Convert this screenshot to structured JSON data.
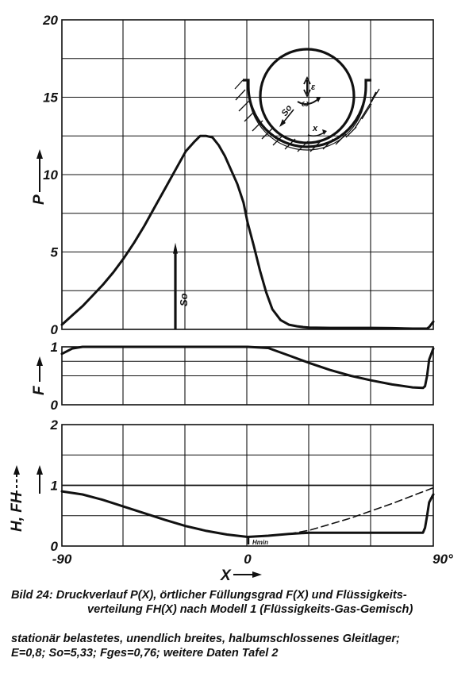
{
  "chart_data": [
    {
      "type": "line",
      "panel": "pressure",
      "ylabel": "P",
      "xlim": [
        -90,
        90
      ],
      "ylim": [
        0,
        20
      ],
      "yticks": [
        0,
        5,
        10,
        15,
        20
      ],
      "ytick_labels": [
        "0",
        "5",
        "10",
        "15",
        "20"
      ],
      "grid": true,
      "series": [
        {
          "x": [
            -90,
            -85,
            -80,
            -75,
            -70,
            -65,
            -60,
            -55,
            -50,
            -45,
            -40,
            -35,
            -30,
            -26,
            -23,
            -20,
            -17,
            -14,
            -11,
            -8,
            -5,
            -2,
            0,
            3,
            6,
            9,
            12,
            16,
            20,
            24,
            27,
            30,
            40,
            50,
            60,
            70,
            80,
            87,
            88,
            90
          ],
          "y": [
            0.3,
            0.9,
            1.5,
            2.2,
            2.9,
            3.7,
            4.6,
            5.6,
            6.7,
            7.9,
            9.1,
            10.3,
            11.5,
            12.1,
            12.5,
            12.5,
            12.4,
            11.9,
            11.2,
            10.3,
            9.4,
            8.2,
            6.9,
            5.4,
            3.8,
            2.4,
            1.3,
            0.6,
            0.3,
            0.2,
            0.15,
            0.12,
            0.1,
            0.1,
            0.1,
            0.08,
            0.05,
            0.05,
            0.15,
            0.5
          ]
        }
      ],
      "annotations": [
        {
          "text": "So",
          "x": -35
        },
        {
          "text": "ε"
        },
        {
          "text": "ω"
        },
        {
          "text": "So"
        },
        {
          "text": "x"
        }
      ]
    },
    {
      "type": "line",
      "panel": "filling",
      "ylabel": "F",
      "xlim": [
        -90,
        90
      ],
      "ylim": [
        0,
        1
      ],
      "yticks": [
        0,
        0.5,
        1
      ],
      "ytick_labels": [
        "0",
        "",
        "1"
      ],
      "grid": true,
      "series": [
        {
          "x": [
            -90,
            -85,
            -80,
            -30,
            0,
            10,
            20,
            30,
            40,
            50,
            60,
            70,
            80,
            85,
            86,
            87,
            88,
            90
          ],
          "y": [
            0.88,
            0.97,
            1.0,
            1.0,
            1.0,
            0.98,
            0.85,
            0.72,
            0.6,
            0.5,
            0.42,
            0.35,
            0.3,
            0.29,
            0.32,
            0.5,
            0.78,
            0.97
          ]
        }
      ]
    },
    {
      "type": "line",
      "panel": "liquid-distribution",
      "ylabel": "H, FH",
      "xlabel": "X",
      "xlim": [
        -90,
        90
      ],
      "ylim": [
        0,
        2
      ],
      "xticks": [
        -90,
        0,
        90
      ],
      "xtick_labels": [
        "-90",
        "0",
        "90°"
      ],
      "yticks": [
        0,
        1,
        2
      ],
      "ytick_labels": [
        "0",
        "1",
        "2"
      ],
      "grid": true,
      "series": [
        {
          "name": "FH",
          "style": "solid",
          "x": [
            -90,
            -80,
            -70,
            -60,
            -50,
            -40,
            -30,
            -20,
            -10,
            0,
            10,
            20,
            30,
            40,
            50,
            60,
            70,
            80,
            85,
            86,
            87,
            88,
            90
          ],
          "y": [
            0.9,
            0.85,
            0.76,
            0.65,
            0.54,
            0.43,
            0.33,
            0.25,
            0.19,
            0.15,
            0.17,
            0.2,
            0.22,
            0.22,
            0.22,
            0.22,
            0.22,
            0.22,
            0.22,
            0.3,
            0.5,
            0.72,
            0.85
          ]
        },
        {
          "name": "H",
          "style": "dashed",
          "x": [
            20,
            30,
            40,
            50,
            60,
            70,
            80,
            90
          ],
          "y": [
            0.2,
            0.26,
            0.36,
            0.46,
            0.58,
            0.7,
            0.83,
            0.96
          ]
        }
      ],
      "annotations": [
        {
          "text": "Hmin",
          "x": 2
        }
      ]
    }
  ],
  "caption": {
    "line1": "Bild 24: Druckverlauf P(X), örtlicher Füllungsgrad F(X) und Flüssigkeits-",
    "line2": "verteilung FH(X) nach Modell 1 (Flüssigkeits-Gas-Gemisch)",
    "line3": "stationär belastetes, unendlich breites, halbumschlossenes Gleitlager;",
    "line4": "E=0,8; So=5,33; Fges=0,76; weitere Daten Tafel 2"
  },
  "colors": {
    "ink": "#111111",
    "background": "#ffffff"
  }
}
